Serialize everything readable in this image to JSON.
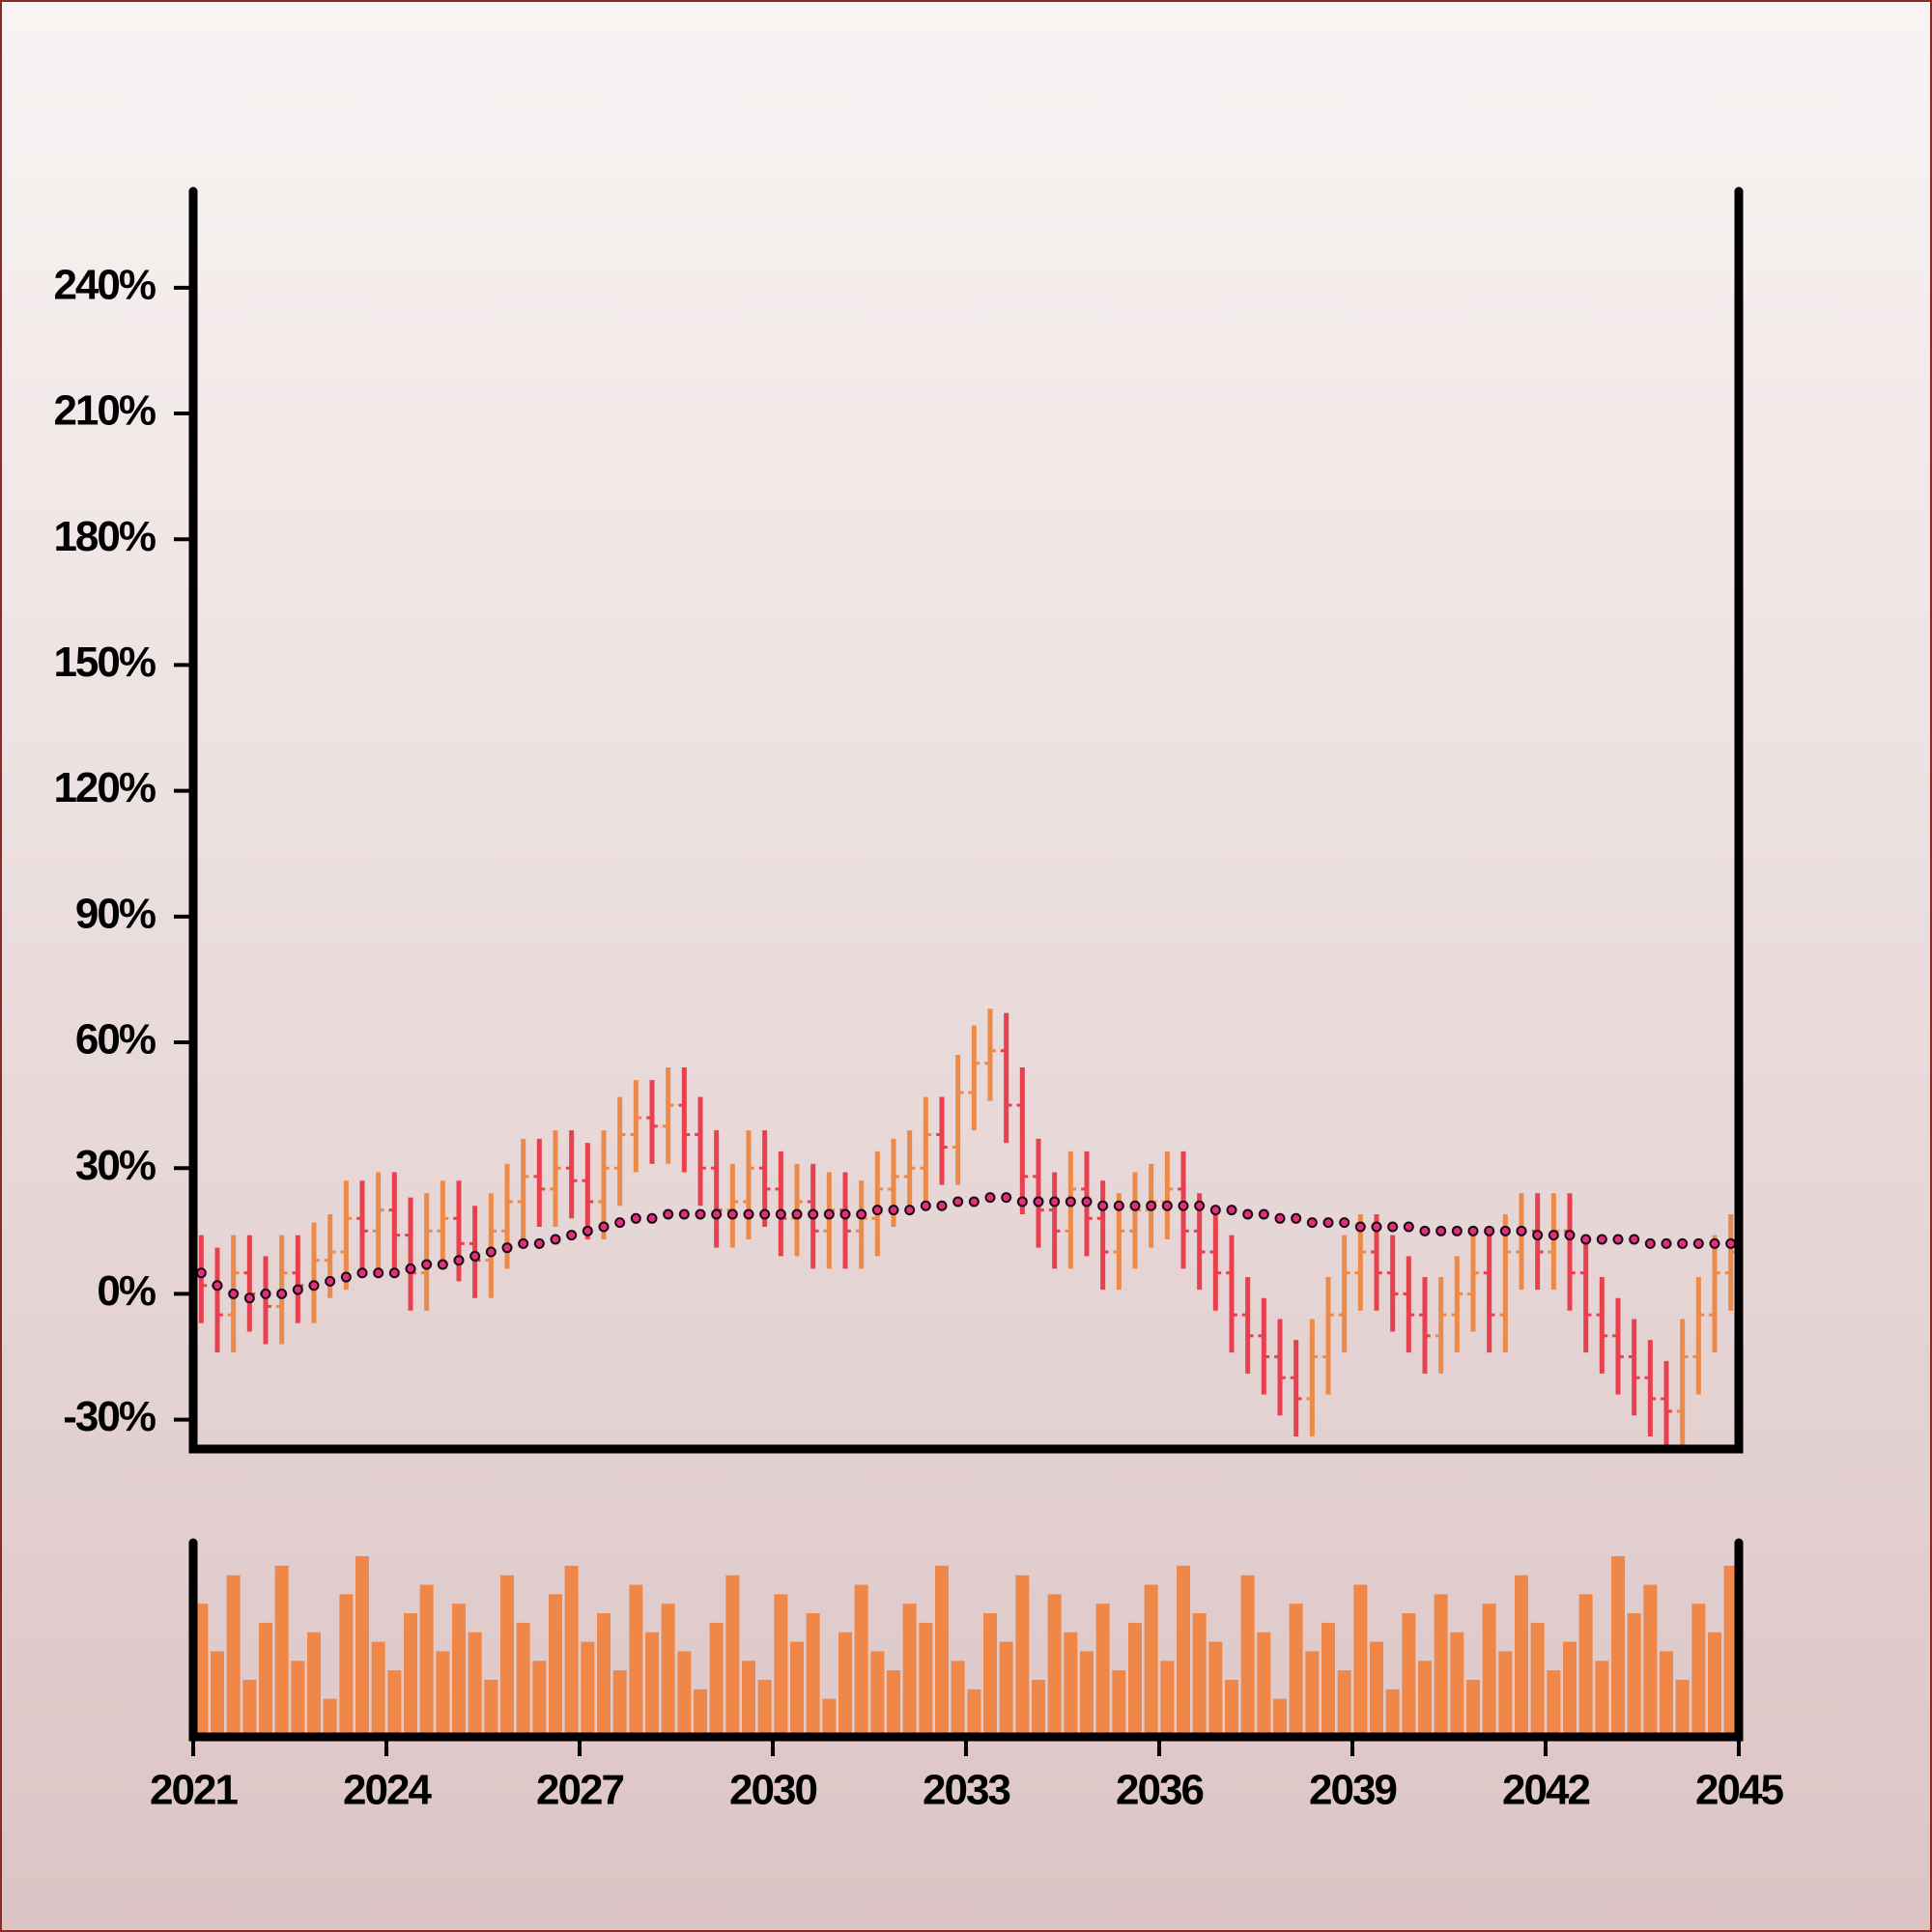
{
  "chart_data": {
    "type": "ohlc",
    "x": [
      2021.125,
      2021.375,
      2021.625,
      2021.875,
      2022.125,
      2022.375,
      2022.625,
      2022.875,
      2023.125,
      2023.375,
      2023.625,
      2023.875,
      2024.125,
      2024.375,
      2024.625,
      2024.875,
      2025.125,
      2025.375,
      2025.625,
      2025.875,
      2026.125,
      2026.375,
      2026.625,
      2026.875,
      2027.125,
      2027.375,
      2027.625,
      2027.875,
      2028.125,
      2028.375,
      2028.625,
      2028.875,
      2029.125,
      2029.375,
      2029.625,
      2029.875,
      2030.125,
      2030.375,
      2030.625,
      2030.875,
      2031.125,
      2031.375,
      2031.625,
      2031.875,
      2032.125,
      2032.375,
      2032.625,
      2032.875,
      2033.125,
      2033.375,
      2033.625,
      2033.875,
      2034.125,
      2034.375,
      2034.625,
      2034.875,
      2035.125,
      2035.375,
      2035.625,
      2035.875,
      2036.125,
      2036.375,
      2036.625,
      2036.875,
      2037.125,
      2037.375,
      2037.625,
      2037.875,
      2038.125,
      2038.375,
      2038.625,
      2038.875,
      2039.125,
      2039.375,
      2039.625,
      2039.875,
      2040.125,
      2040.375,
      2040.625,
      2040.875,
      2041.125,
      2041.375,
      2041.625,
      2041.875,
      2042.125,
      2042.375,
      2042.625,
      2042.875,
      2043.125,
      2043.375,
      2043.625,
      2043.875,
      2044.125,
      2044.375,
      2044.625,
      2044.875
    ],
    "open": [
      5,
      2,
      -5,
      5,
      0,
      -3,
      5,
      2,
      8,
      10,
      18,
      15,
      20,
      14,
      5,
      15,
      18,
      12,
      8,
      15,
      22,
      28,
      25,
      30,
      27,
      22,
      30,
      38,
      42,
      40,
      45,
      38,
      30,
      20,
      22,
      30,
      25,
      18,
      22,
      15,
      20,
      15,
      18,
      25,
      28,
      30,
      38,
      35,
      48,
      55,
      58,
      45,
      28,
      20,
      15,
      25,
      18,
      10,
      15,
      20,
      22,
      25,
      15,
      10,
      5,
      -5,
      -10,
      -15,
      -20,
      -25,
      -15,
      -5,
      5,
      10,
      5,
      0,
      -5,
      -10,
      -5,
      0,
      5,
      -5,
      10,
      15,
      10,
      15,
      5,
      -5,
      -10,
      -15,
      -20,
      -25,
      -28,
      -15,
      -5,
      5
    ],
    "high": [
      14,
      11,
      14,
      14,
      9,
      14,
      14,
      17,
      19,
      27,
      27,
      29,
      29,
      23,
      24,
      27,
      27,
      21,
      24,
      31,
      37,
      37,
      39,
      39,
      36,
      39,
      47,
      51,
      51,
      54,
      54,
      47,
      39,
      31,
      39,
      39,
      34,
      31,
      31,
      29,
      29,
      27,
      34,
      37,
      39,
      47,
      47,
      57,
      64,
      68,
      67,
      54,
      37,
      29,
      34,
      34,
      27,
      24,
      29,
      31,
      34,
      34,
      24,
      19,
      14,
      4,
      -1,
      -6,
      -11,
      -6,
      4,
      14,
      19,
      19,
      14,
      9,
      4,
      4,
      9,
      14,
      14,
      19,
      24,
      24,
      24,
      24,
      14,
      4,
      -1,
      -6,
      -11,
      -16,
      -6,
      4,
      14,
      19
    ],
    "low": [
      -7,
      -14,
      -14,
      -9,
      -12,
      -12,
      -7,
      -7,
      -1,
      1,
      6,
      6,
      5,
      -4,
      -4,
      6,
      3,
      -1,
      -1,
      6,
      13,
      16,
      16,
      18,
      13,
      13,
      21,
      29,
      31,
      31,
      29,
      21,
      11,
      11,
      13,
      16,
      9,
      9,
      6,
      6,
      6,
      6,
      9,
      16,
      19,
      21,
      26,
      26,
      39,
      46,
      36,
      19,
      11,
      6,
      6,
      9,
      1,
      1,
      6,
      11,
      13,
      6,
      1,
      -4,
      -14,
      -19,
      -24,
      -29,
      -34,
      -34,
      -24,
      -14,
      -4,
      -4,
      -9,
      -14,
      -19,
      -19,
      -14,
      -9,
      -14,
      -14,
      1,
      1,
      1,
      -4,
      -14,
      -19,
      -24,
      -29,
      -34,
      -37,
      -37,
      -24,
      -14,
      -4
    ],
    "close": [
      2,
      -5,
      5,
      0,
      -3,
      5,
      2,
      8,
      10,
      18,
      15,
      20,
      14,
      5,
      15,
      18,
      12,
      8,
      15,
      22,
      28,
      25,
      30,
      27,
      22,
      30,
      38,
      42,
      40,
      45,
      38,
      30,
      20,
      22,
      30,
      25,
      18,
      22,
      15,
      20,
      15,
      18,
      25,
      28,
      30,
      38,
      35,
      48,
      55,
      58,
      45,
      28,
      20,
      15,
      25,
      18,
      10,
      15,
      20,
      22,
      25,
      15,
      10,
      5,
      -5,
      -10,
      -15,
      -20,
      -25,
      -15,
      -5,
      5,
      10,
      5,
      0,
      -5,
      -10,
      -5,
      0,
      5,
      -5,
      10,
      15,
      10,
      15,
      5,
      -5,
      -10,
      -15,
      -20,
      -25,
      -28,
      -15,
      -5,
      5,
      10
    ],
    "up_color": "#ec8a4a",
    "down_color": "#e8404f",
    "moving_average": {
      "color": "#e0307a",
      "values": [
        5,
        2,
        0,
        -1,
        0,
        0,
        1,
        2,
        3,
        4,
        5,
        5,
        5,
        6,
        7,
        7,
        8,
        9,
        10,
        11,
        12,
        12,
        13,
        14,
        15,
        16,
        17,
        18,
        18,
        19,
        19,
        19,
        19,
        19,
        19,
        19,
        19,
        19,
        19,
        19,
        19,
        19,
        20,
        20,
        20,
        21,
        21,
        22,
        22,
        23,
        23,
        22,
        22,
        22,
        22,
        22,
        21,
        21,
        21,
        21,
        21,
        21,
        21,
        20,
        20,
        19,
        19,
        18,
        18,
        17,
        17,
        17,
        16,
        16,
        16,
        16,
        15,
        15,
        15,
        15,
        15,
        15,
        15,
        14,
        14,
        14,
        13,
        13,
        13,
        13,
        12,
        12,
        12,
        12,
        12,
        12
      ]
    },
    "volume": {
      "color": "#ee8748",
      "values": [
        70,
        45,
        85,
        30,
        60,
        90,
        40,
        55,
        20,
        75,
        95,
        50,
        35,
        65,
        80,
        45,
        70,
        55,
        30,
        85,
        60,
        40,
        75,
        90,
        50,
        65,
        35,
        80,
        55,
        70,
        45,
        25,
        60,
        85,
        40,
        30,
        75,
        50,
        65,
        20,
        55,
        80,
        45,
        35,
        70,
        60,
        90,
        40,
        25,
        65,
        50,
        85,
        30,
        75,
        55,
        45,
        70,
        35,
        60,
        80,
        40,
        90,
        65,
        50,
        30,
        85,
        55,
        20,
        70,
        45,
        60,
        35,
        80,
        50,
        25,
        65,
        40,
        75,
        55,
        30,
        70,
        45,
        85,
        60,
        35,
        50,
        75,
        40,
        95,
        65,
        80,
        45,
        30,
        70,
        55,
        90
      ]
    },
    "xlim": [
      2021,
      2045
    ],
    "xticks": [
      2021,
      2024,
      2027,
      2030,
      2033,
      2036,
      2039,
      2042,
      2045
    ],
    "ylim": [
      -37,
      263
    ],
    "yticks": [
      {
        "value": -30,
        "label": "-30%"
      },
      {
        "value": 0,
        "label": "0%"
      },
      {
        "value": 30,
        "label": "30%"
      },
      {
        "value": 60,
        "label": "60%"
      },
      {
        "value": 90,
        "label": "90%"
      },
      {
        "value": 120,
        "label": "120%"
      },
      {
        "value": 150,
        "label": "150%"
      },
      {
        "value": 180,
        "label": "180%"
      },
      {
        "value": 210,
        "label": "210%"
      },
      {
        "value": 240,
        "label": "240%"
      }
    ]
  }
}
